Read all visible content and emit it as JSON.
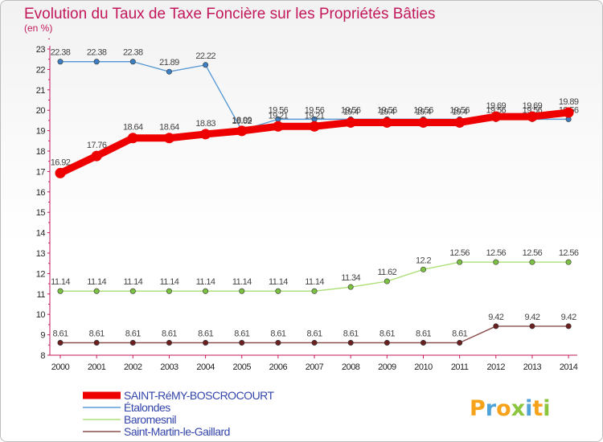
{
  "chart_data": {
    "type": "line",
    "title": "Evolution du Taux de Taxe Foncière sur les Propriétés Bâties",
    "unit_label": "(en %)",
    "x": [
      "2000",
      "2001",
      "2002",
      "2003",
      "2004",
      "2005",
      "2006",
      "2007",
      "2008",
      "2009",
      "2010",
      "2011",
      "2012",
      "2013",
      "2014"
    ],
    "ylim": [
      8,
      23
    ],
    "yticks": [
      "8",
      "9",
      "10",
      "11",
      "12",
      "13",
      "14",
      "15",
      "16",
      "17",
      "18",
      "19",
      "20",
      "21",
      "22",
      "23"
    ],
    "grid": false,
    "legend_position": "bottom-left",
    "series": [
      {
        "name": "Étalondes",
        "color": "#5b9bd5",
        "marker": "#3d7fc2",
        "values": [
          22.38,
          22.38,
          22.38,
          21.89,
          22.22,
          19.02,
          19.56,
          19.56,
          19.56,
          19.56,
          19.56,
          19.56,
          19.56,
          19.56,
          19.56
        ],
        "labels": [
          "22.38",
          "22.38",
          "22.38",
          "21.89",
          "22.22",
          "19.02",
          "19.56",
          "19.56",
          "19.56",
          "19.56",
          "19.56",
          "19.56",
          "19.56",
          "19.56",
          "19.56"
        ]
      },
      {
        "name": "Baromesnil",
        "color": "#aee07a",
        "marker": "#7cc142",
        "values": [
          11.14,
          11.14,
          11.14,
          11.14,
          11.14,
          11.14,
          11.14,
          11.14,
          11.34,
          11.62,
          12.2,
          12.56,
          12.56,
          12.56,
          12.56
        ],
        "labels": [
          "11.14",
          "11.14",
          "11.14",
          "11.14",
          "11.14",
          "11.14",
          "11.14",
          "11.14",
          "11.34",
          "11.62",
          "12.2",
          "12.56",
          "12.56",
          "12.56",
          "12.56"
        ]
      },
      {
        "name": "Saint-Martin-le-Gaillard",
        "color": "#8b4f4f",
        "marker": "#6b1f1f",
        "values": [
          8.61,
          8.61,
          8.61,
          8.61,
          8.61,
          8.61,
          8.61,
          8.61,
          8.61,
          8.61,
          8.61,
          8.61,
          9.42,
          9.42,
          9.42
        ],
        "labels": [
          "8.61",
          "8.61",
          "8.61",
          "8.61",
          "8.61",
          "8.61",
          "8.61",
          "8.61",
          "8.61",
          "8.61",
          "8.61",
          "8.61",
          "9.42",
          "9.42",
          "9.42"
        ]
      },
      {
        "name": "SAINT-RéMY-BOSCROCOURT",
        "color": "#ee0000",
        "marker": "#ee0000",
        "thick": true,
        "values": [
          16.92,
          17.76,
          18.64,
          18.64,
          18.83,
          18.99,
          19.21,
          19.21,
          19.4,
          19.4,
          19.4,
          19.4,
          19.69,
          19.69,
          19.89
        ],
        "labels": [
          "16.92",
          "17.76",
          "18.64",
          "18.64",
          "18.83",
          "18.99",
          "19.21",
          "19.21",
          "19.4",
          "19.4",
          "19.4",
          "19.4",
          "19.69",
          "19.69",
          "19.89"
        ]
      }
    ],
    "legend_order": [
      "SAINT-RéMY-BOSCROCOURT",
      "Étalondes",
      "Baromesnil",
      "Saint-Martin-le-Gaillard"
    ]
  },
  "logo": {
    "letters": [
      "P",
      "r",
      "o",
      "x",
      "i",
      "t",
      "i"
    ],
    "colors": [
      "#f7a21b",
      "#4fa3d8",
      "#f7a21b",
      "#8cc63f",
      "#4fa3d8",
      "#f7a21b",
      "#8cc63f"
    ]
  }
}
